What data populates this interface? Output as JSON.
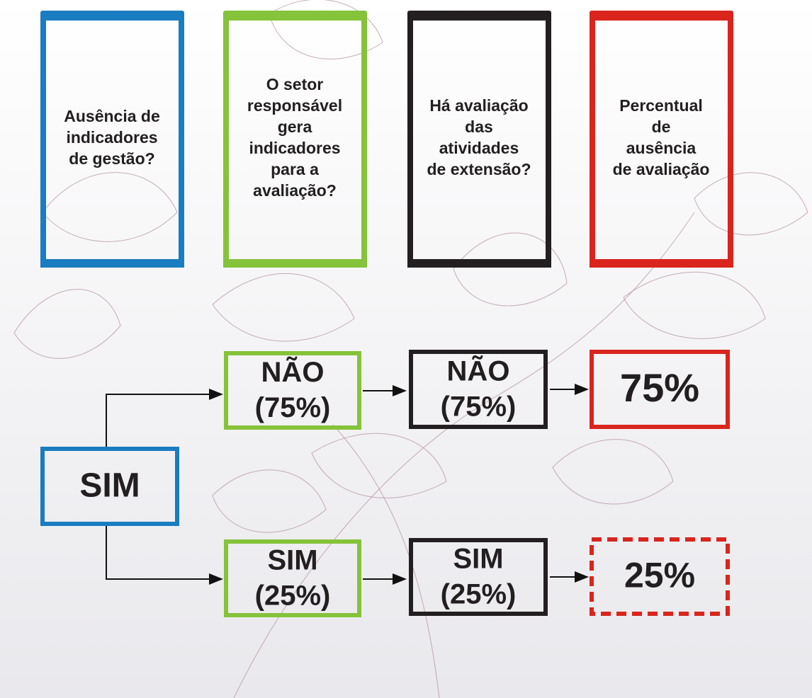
{
  "headers": [
    {
      "lines": [
        "Ausência de",
        "indicadores",
        "de gestão?"
      ]
    },
    {
      "lines": [
        "O setor",
        "responsável",
        "gera",
        "indicadores",
        "para a",
        "avaliação?"
      ]
    },
    {
      "lines": [
        "Há avaliação",
        "das",
        "atividades",
        "de extensão?"
      ]
    },
    {
      "lines": [
        "Percentual",
        "de",
        "ausência",
        "de avaliação"
      ]
    }
  ],
  "nodes": [
    {
      "lines": [
        "SIM"
      ]
    },
    {
      "lines": [
        "NÃO",
        "(75%)"
      ]
    },
    {
      "lines": [
        "NÃO",
        "(75%)"
      ]
    },
    {
      "lines": [
        "75%"
      ]
    },
    {
      "lines": [
        "SIM",
        "(25%)"
      ]
    },
    {
      "lines": [
        "SIM",
        "(25%)"
      ]
    },
    {
      "lines": [
        "25%"
      ]
    }
  ]
}
